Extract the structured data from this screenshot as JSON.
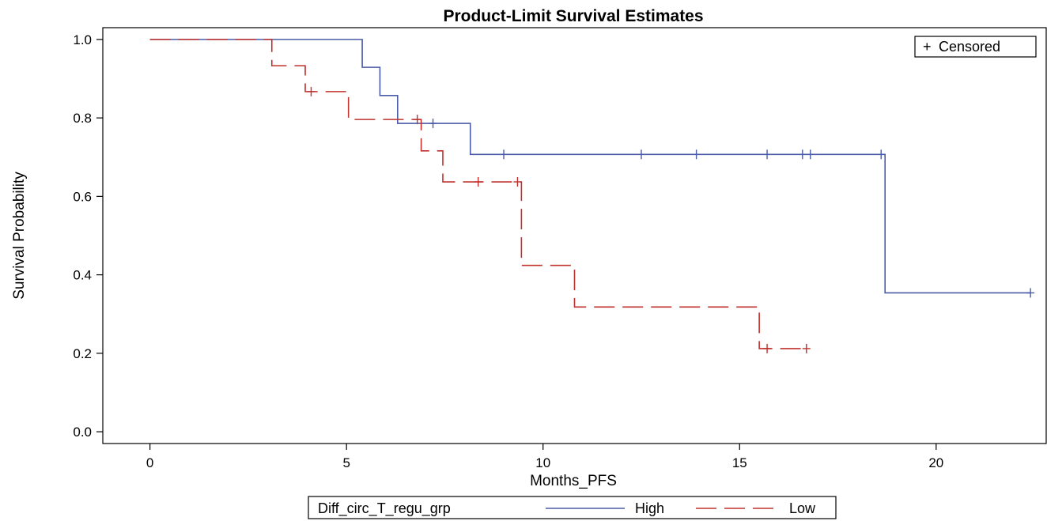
{
  "chart_data": {
    "type": "line",
    "subtype": "step",
    "title": "Product-Limit Survival Estimates",
    "xlabel": "Months_PFS",
    "ylabel": "Survival Probability",
    "xlim": [
      -1.2,
      22.8
    ],
    "ylim": [
      -0.03,
      1.03
    ],
    "xticks": [
      0,
      5,
      10,
      15,
      20
    ],
    "yticks": [
      0.0,
      0.2,
      0.4,
      0.6,
      0.8,
      1.0
    ],
    "ytick_labels": [
      "0.0",
      "0.2",
      "0.4",
      "0.6",
      "0.8",
      "1.0"
    ],
    "grid": false,
    "censored_legend": {
      "symbol": "+",
      "label": "Censored",
      "position": "top-right"
    },
    "group_legend": {
      "title": "Diff_circ_T_regu_grp",
      "position": "bottom"
    },
    "series": [
      {
        "name": "High",
        "color": "#4a5ba8",
        "dash": "solid",
        "steps": [
          {
            "x": 0,
            "y": 1.0
          },
          {
            "x": 5.4,
            "y": 0.929
          },
          {
            "x": 5.85,
            "y": 0.857
          },
          {
            "x": 6.3,
            "y": 0.786
          },
          {
            "x": 8.15,
            "y": 0.707
          },
          {
            "x": 18.7,
            "y": 0.354
          }
        ],
        "end_x": 22.4,
        "censored": [
          {
            "x": 7.2,
            "y": 0.786
          },
          {
            "x": 9.0,
            "y": 0.707
          },
          {
            "x": 12.5,
            "y": 0.707
          },
          {
            "x": 13.9,
            "y": 0.707
          },
          {
            "x": 15.7,
            "y": 0.707
          },
          {
            "x": 16.6,
            "y": 0.707
          },
          {
            "x": 16.8,
            "y": 0.707
          },
          {
            "x": 18.6,
            "y": 0.707
          },
          {
            "x": 22.4,
            "y": 0.354
          }
        ]
      },
      {
        "name": "Low",
        "color": "#c0302c",
        "dash": "dashed",
        "steps": [
          {
            "x": 0,
            "y": 1.0
          },
          {
            "x": 3.1,
            "y": 0.933
          },
          {
            "x": 3.95,
            "y": 0.867
          },
          {
            "x": 5.05,
            "y": 0.796
          },
          {
            "x": 6.9,
            "y": 0.716
          },
          {
            "x": 7.45,
            "y": 0.637
          },
          {
            "x": 9.45,
            "y": 0.424
          },
          {
            "x": 10.8,
            "y": 0.318
          },
          {
            "x": 15.5,
            "y": 0.212
          }
        ],
        "end_x": 16.7,
        "censored": [
          {
            "x": 4.1,
            "y": 0.867
          },
          {
            "x": 6.8,
            "y": 0.796
          },
          {
            "x": 8.35,
            "y": 0.637
          },
          {
            "x": 9.35,
            "y": 0.637
          },
          {
            "x": 15.7,
            "y": 0.212
          },
          {
            "x": 16.7,
            "y": 0.212
          }
        ]
      }
    ]
  }
}
